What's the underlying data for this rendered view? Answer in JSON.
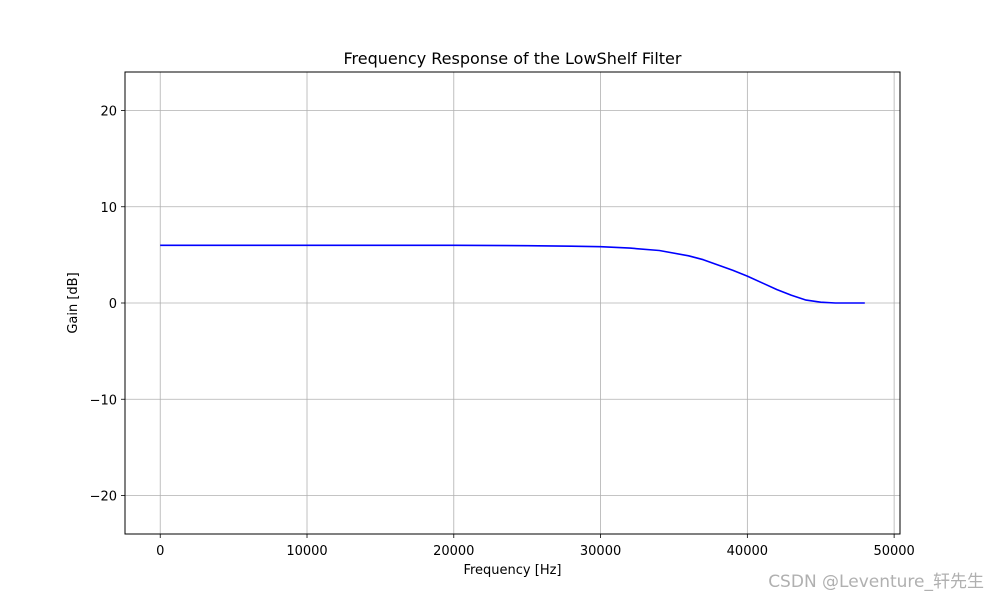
{
  "chart_data": {
    "type": "line",
    "title": "Frequency Response of the LowShelf Filter",
    "xlabel": "Frequency [Hz]",
    "ylabel": "Gain [dB]",
    "xlim": [
      -2400,
      50400
    ],
    "ylim": [
      -24,
      24
    ],
    "xticks": [
      0,
      10000,
      20000,
      30000,
      40000,
      50000
    ],
    "xtick_labels": [
      "0",
      "10000",
      "20000",
      "30000",
      "40000",
      "50000"
    ],
    "yticks": [
      -20,
      -10,
      0,
      10,
      20
    ],
    "ytick_labels": [
      "−20",
      "−10",
      "0",
      "10",
      "20"
    ],
    "grid": true,
    "legend": "none",
    "series": [
      {
        "color": "#0000ff",
        "x": [
          0,
          5000,
          10000,
          15000,
          20000,
          25000,
          28000,
          30000,
          32000,
          34000,
          36000,
          37000,
          38000,
          39000,
          40000,
          41000,
          42000,
          43000,
          44000,
          45000,
          46000,
          47000,
          48000
        ],
        "y": [
          6.0,
          6.0,
          6.0,
          6.0,
          6.0,
          5.95,
          5.9,
          5.85,
          5.7,
          5.45,
          4.9,
          4.5,
          3.95,
          3.4,
          2.8,
          2.1,
          1.4,
          0.8,
          0.3,
          0.08,
          0.0,
          0.0,
          0.0
        ]
      }
    ]
  },
  "watermark": "CSDN @Leventure_轩先生"
}
